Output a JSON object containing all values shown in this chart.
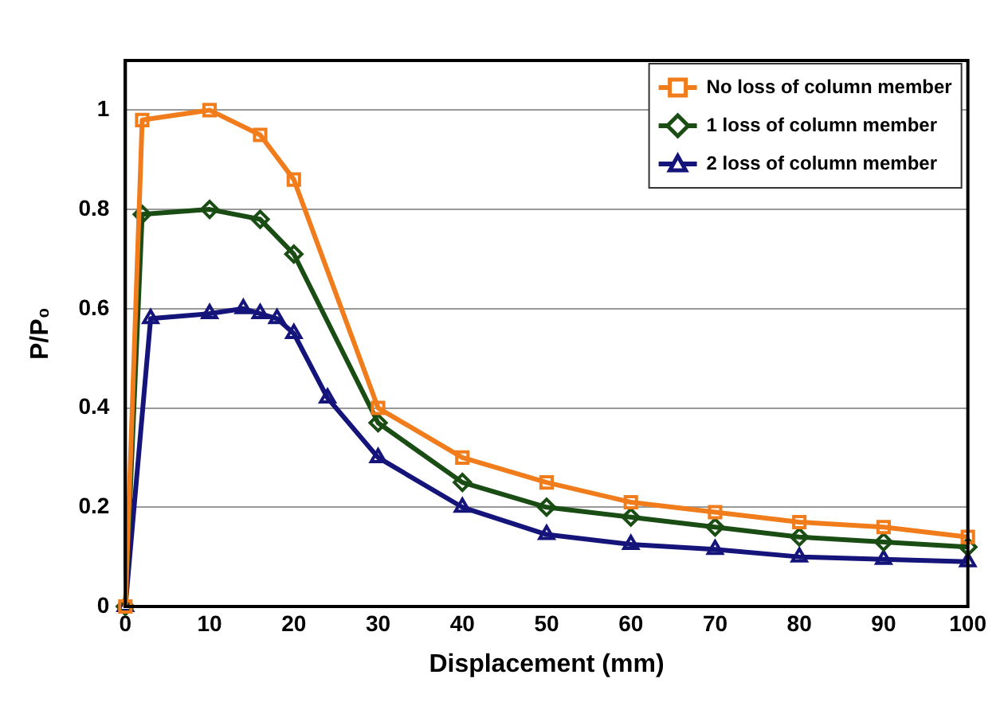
{
  "chart_data": {
    "type": "line",
    "xlabel": "Displacement (mm)",
    "ylabel": "P/P₀",
    "xlim": [
      0,
      100
    ],
    "xticks": [
      0,
      10,
      20,
      30,
      40,
      50,
      60,
      70,
      80,
      90,
      100
    ],
    "ylim": [
      0,
      1.1
    ],
    "yticks": [
      0,
      0.2,
      0.4,
      0.6,
      0.8,
      {
        "value": 1,
        "label": "1"
      }
    ],
    "grid": "y",
    "legend": "top right",
    "line_style": "solid",
    "series": [
      {
        "name": "No loss of column member",
        "color": "#f07c1c",
        "marker": "square",
        "x": [
          0,
          2,
          10,
          16,
          20,
          30,
          40,
          50,
          60,
          70,
          80,
          90,
          100
        ],
        "values": [
          0,
          0.98,
          1.0,
          0.95,
          0.86,
          0.4,
          0.3,
          0.25,
          0.21,
          0.19,
          0.17,
          0.16,
          0.14
        ]
      },
      {
        "name": "1 loss of column member",
        "color": "#1a4d14",
        "marker": "diamond",
        "x": [
          0,
          2,
          10,
          16,
          20,
          30,
          40,
          50,
          60,
          70,
          80,
          90,
          100
        ],
        "values": [
          0,
          0.79,
          0.8,
          0.78,
          0.71,
          0.37,
          0.25,
          0.2,
          0.18,
          0.16,
          0.14,
          0.13,
          0.12
        ]
      },
      {
        "name": "2 loss of column member",
        "color": "#14147a",
        "marker": "triangle",
        "x": [
          0,
          3,
          10,
          14,
          16,
          18,
          20,
          24,
          30,
          40,
          50,
          60,
          70,
          80,
          90,
          100
        ],
        "values": [
          0,
          0.58,
          0.59,
          0.6,
          0.59,
          0.58,
          0.55,
          0.42,
          0.3,
          0.2,
          0.145,
          0.125,
          0.115,
          0.1,
          0.095,
          0.09
        ]
      }
    ]
  }
}
